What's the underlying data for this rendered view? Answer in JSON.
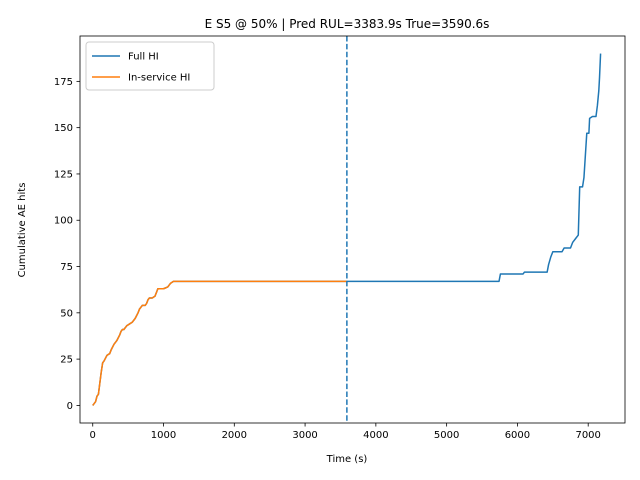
{
  "chart_data": {
    "type": "line",
    "title": "E S5 @ 50% | Pred RUL=3383.9s  True=3590.6s",
    "xlabel": "Time (s)",
    "ylabel": "Cumulative AE hits",
    "xlim": [
      -180,
      7520
    ],
    "ylim": [
      -9.5,
      199.5
    ],
    "xticks": [
      0,
      1000,
      2000,
      3000,
      4000,
      5000,
      6000,
      7000
    ],
    "yticks": [
      0,
      25,
      50,
      75,
      100,
      125,
      150,
      175
    ],
    "grid": false,
    "legend_position": "upper-left",
    "vline": {
      "x": 3590.6,
      "style": "dashed",
      "color": "#1f77b4"
    },
    "series": [
      {
        "name": "Full HI",
        "color": "#1f77b4",
        "x": [
          0,
          40,
          60,
          80,
          100,
          120,
          140,
          160,
          200,
          240,
          260,
          300,
          340,
          380,
          400,
          420,
          440,
          480,
          520,
          560,
          600,
          640,
          660,
          680,
          700,
          740,
          760,
          780,
          800,
          840,
          880,
          920,
          1000,
          1060,
          1080,
          1100,
          1140,
          1200,
          3590,
          5740,
          5760,
          6080,
          6100,
          6420,
          6440,
          6470,
          6500,
          6630,
          6660,
          6750,
          6780,
          6820,
          6860,
          6880,
          6920,
          6940,
          6960,
          6980,
          7010,
          7020,
          7060,
          7090,
          7110,
          7130,
          7150,
          7160,
          7175
        ],
        "y": [
          0,
          2,
          5,
          6,
          12,
          18,
          23,
          24,
          27,
          28,
          30,
          33,
          35,
          38,
          40,
          41,
          41,
          43,
          44,
          45,
          47,
          50,
          52,
          53,
          54,
          54,
          55,
          57,
          58,
          58,
          59,
          63,
          63,
          64,
          65,
          66,
          67,
          67,
          67,
          67,
          71,
          71,
          72,
          72,
          76,
          80,
          83,
          83,
          85,
          85,
          88,
          90,
          92,
          118,
          118,
          123,
          135,
          147,
          147,
          155,
          156,
          156,
          156,
          162,
          170,
          177,
          190
        ]
      },
      {
        "name": "In-service HI",
        "color": "#ff7f0e",
        "x": [
          0,
          40,
          60,
          80,
          100,
          120,
          140,
          160,
          200,
          240,
          260,
          300,
          340,
          380,
          400,
          420,
          440,
          480,
          520,
          560,
          600,
          640,
          660,
          680,
          700,
          740,
          760,
          780,
          800,
          840,
          880,
          920,
          1000,
          1060,
          1080,
          1100,
          1140,
          1200,
          3590
        ],
        "y": [
          0,
          2,
          5,
          6,
          12,
          18,
          23,
          24,
          27,
          28,
          30,
          33,
          35,
          38,
          40,
          41,
          41,
          43,
          44,
          45,
          47,
          50,
          52,
          53,
          54,
          54,
          55,
          57,
          58,
          58,
          59,
          63,
          63,
          64,
          65,
          66,
          67,
          67,
          67
        ]
      }
    ]
  }
}
